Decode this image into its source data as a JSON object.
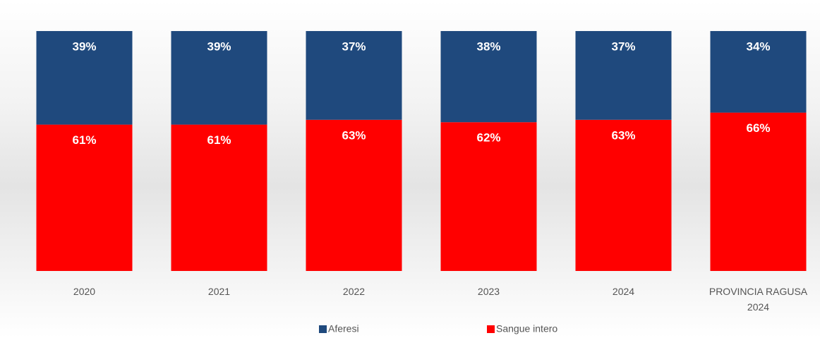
{
  "chart_data": {
    "type": "stacked_bar",
    "categories": [
      "2020",
      "2021",
      "2022",
      "2023",
      "2024",
      "PROVINCIA RAGUSA 2024"
    ],
    "series": [
      {
        "name": "Aferesi",
        "color": "#1f497d",
        "values": [
          39,
          39,
          37,
          38,
          37,
          34
        ],
        "value_labels": [
          "39%",
          "39%",
          "37%",
          "38%",
          "37%",
          "34%"
        ]
      },
      {
        "name": "Sangue intero",
        "color": "#ff0000",
        "values": [
          61,
          61,
          63,
          62,
          63,
          66
        ],
        "value_labels": [
          "61%",
          "61%",
          "63%",
          "62%",
          "63%",
          "66%"
        ]
      }
    ],
    "ylim": [
      0,
      100
    ]
  }
}
